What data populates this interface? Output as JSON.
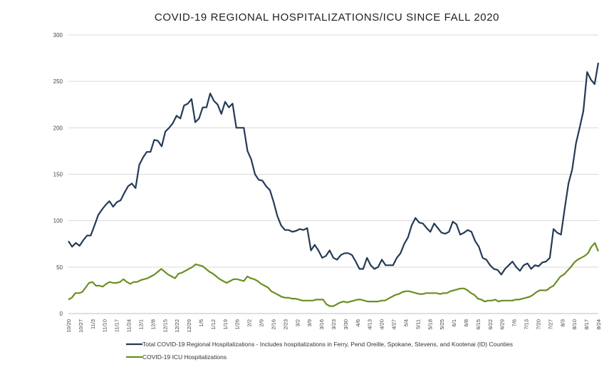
{
  "chart_data": {
    "type": "line",
    "title": "COVID-19 REGIONAL HOSPITALIZATIONS/ICU SINCE FALL 2020",
    "xlabel": "",
    "ylabel": "",
    "ylim": [
      0,
      300
    ],
    "yticks": [
      0,
      50,
      100,
      150,
      200,
      250,
      300
    ],
    "grid": true,
    "legend_position": "bottom",
    "x_tick_labels": [
      "10/20",
      "10/27",
      "11/3",
      "11/10",
      "11/17",
      "11/24",
      "12/1",
      "12/8",
      "12/15",
      "12/22",
      "12/29",
      "1/5",
      "1/12",
      "1/19",
      "1/26",
      "2/2",
      "2/9",
      "2/16",
      "2/23",
      "3/2",
      "3/9",
      "3/16",
      "3/23",
      "3/30",
      "4/6",
      "4/13",
      "4/20",
      "4/27",
      "5/4",
      "5/11",
      "5/18",
      "5/25",
      "6/1",
      "6/8",
      "6/15",
      "6/22",
      "6/29",
      "7/6",
      "7/13",
      "7/20",
      "7/27",
      "8/3",
      "8/10",
      "8/17",
      "8/24"
    ],
    "series": [
      {
        "name": "Total COVID-19 Regional Hospitalizations - Includes hospitalizations in Ferry, Pend Oreille, Spokane, Stevens, and Kootenai (ID) Counties",
        "color": "#243a56",
        "values": [
          78,
          72,
          76,
          73,
          79,
          84,
          84,
          95,
          106,
          112,
          117,
          121,
          115,
          120,
          122,
          130,
          137,
          140,
          135,
          160,
          168,
          174,
          174,
          187,
          186,
          180,
          196,
          200,
          205,
          213,
          210,
          224,
          226,
          231,
          206,
          210,
          222,
          222,
          237,
          229,
          225,
          215,
          228,
          222,
          226,
          200,
          200,
          200,
          175,
          166,
          150,
          144,
          143,
          137,
          133,
          120,
          105,
          95,
          90,
          90,
          88,
          89,
          91,
          90,
          92,
          68,
          74,
          68,
          60,
          62,
          68,
          60,
          58,
          63,
          65,
          65,
          63,
          56,
          48,
          48,
          60,
          52,
          48,
          50,
          58,
          52,
          52,
          52,
          60,
          65,
          75,
          82,
          95,
          103,
          98,
          97,
          92,
          88,
          97,
          92,
          87,
          86,
          88,
          99,
          96,
          85,
          87,
          90,
          88,
          78,
          72,
          60,
          58,
          52,
          48,
          47,
          42,
          48,
          52,
          56,
          50,
          46,
          52,
          54,
          48,
          52,
          51,
          55,
          56,
          60,
          91,
          87,
          85,
          113,
          140,
          155,
          183,
          200,
          218,
          260,
          252,
          247,
          270
        ]
      },
      {
        "name": "COVID-19 ICU Hospitalizations",
        "color": "#6b8e23",
        "values": [
          15,
          17,
          22,
          22,
          23,
          28,
          33,
          34,
          30,
          30,
          29,
          32,
          34,
          33,
          33,
          34,
          37,
          34,
          32,
          34,
          34,
          36,
          37,
          38,
          40,
          42,
          45,
          48,
          45,
          42,
          40,
          38,
          43,
          44,
          46,
          48,
          50,
          53,
          52,
          51,
          48,
          45,
          43,
          40,
          37,
          35,
          33,
          35,
          37,
          37,
          36,
          35,
          40,
          38,
          37,
          35,
          32,
          30,
          28,
          24,
          22,
          20,
          18,
          17,
          17,
          16,
          16,
          15,
          14,
          14,
          14,
          14,
          15,
          15,
          15,
          10,
          8,
          8,
          10,
          12,
          13,
          12,
          13,
          14,
          15,
          15,
          14,
          13,
          13,
          13,
          13,
          14,
          14,
          16,
          18,
          20,
          21,
          23,
          24,
          24,
          23,
          22,
          21,
          21,
          22,
          22,
          22,
          22,
          21,
          22,
          22,
          24,
          25,
          26,
          27,
          27,
          25,
          22,
          20,
          16,
          15,
          13,
          14,
          14,
          15,
          13,
          14,
          14,
          14,
          14,
          15,
          15,
          16,
          17,
          18,
          20,
          23,
          25,
          25,
          25,
          28,
          30,
          35,
          40,
          42,
          46,
          50,
          55,
          58,
          60,
          62,
          65,
          72,
          76,
          67
        ]
      }
    ]
  }
}
